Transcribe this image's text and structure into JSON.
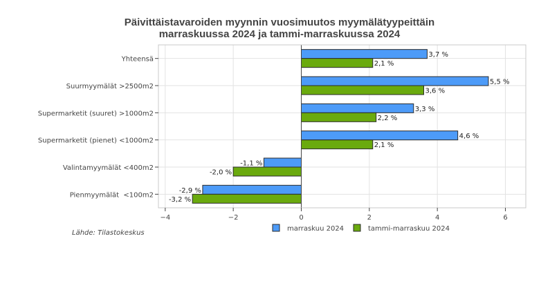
{
  "chart_data": {
    "type": "bar",
    "orientation": "horizontal",
    "title_line1": "Päivittäistavaroiden myynnin vuosimuutos myymälätyypeittäin",
    "title_line2": "marraskuussa 2024 ja tammi-marraskuussa 2024",
    "categories": [
      "Yhteensä",
      "Suurmyymälät >2500m2",
      "Supermarketit (suuret) >1000m2",
      "Supermarketit (pienet) <1000m2",
      "Valintamyymälät <400m2",
      "Pienmyymälät  <100m2"
    ],
    "series": [
      {
        "name": "marraskuu 2024",
        "color": "#4d9bf8",
        "values": [
          3.7,
          5.5,
          3.3,
          4.6,
          -1.1,
          -2.9
        ],
        "labels": [
          "3,7 %",
          "5,5 %",
          "3,3 %",
          "4,6 %",
          "-1,1 %",
          "-2,9 %"
        ]
      },
      {
        "name": "tammi-marraskuu 2024",
        "color": "#6aaa0e",
        "values": [
          2.1,
          3.6,
          2.2,
          2.1,
          -2.0,
          -3.2
        ],
        "labels": [
          "2,1 %",
          "3,6 %",
          "2,2 %",
          "2,1 %",
          "-2,0 %",
          "-3,2 %"
        ]
      }
    ],
    "xlim": [
      -4.2,
      6.6
    ],
    "xticks": [
      -4,
      -2,
      0,
      2,
      4,
      6
    ],
    "xtick_labels": [
      "−4",
      "−2",
      "0",
      "2",
      "4",
      "6"
    ],
    "grid": true,
    "legend_position": "bottom"
  },
  "source_text": "Lähde: Tilastokeskus"
}
